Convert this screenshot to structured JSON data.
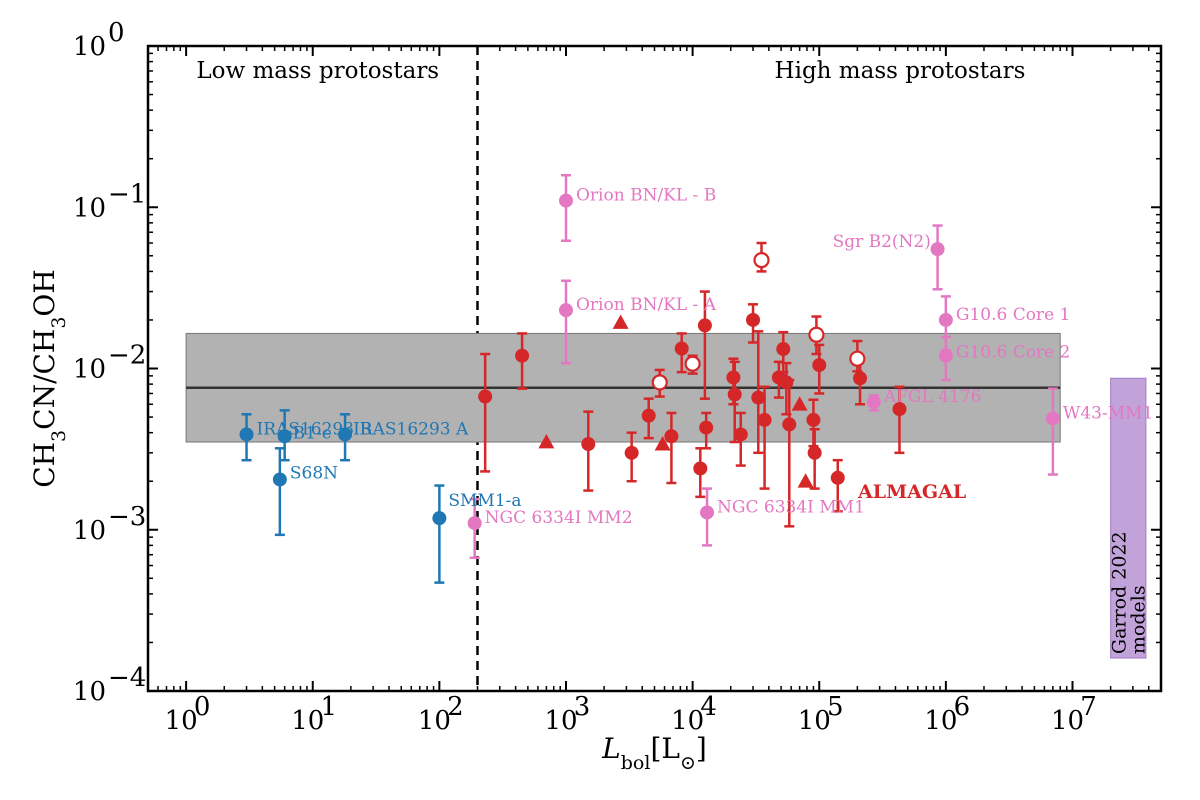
{
  "chart_data": {
    "type": "scatter",
    "xscale": "log",
    "yscale": "log",
    "xlim": [
      0.5,
      50000000
    ],
    "ylim": [
      0.0001,
      1
    ],
    "xlabel": "L_bol [L_⊙]",
    "ylabel": "CH3CN/CH3OH",
    "x_ticks": [
      {
        "label": "10",
        "exp": "0",
        "value": 1
      },
      {
        "label": "10",
        "exp": "1",
        "value": 10
      },
      {
        "label": "10",
        "exp": "2",
        "value": 100
      },
      {
        "label": "10",
        "exp": "3",
        "value": 1000
      },
      {
        "label": "10",
        "exp": "4",
        "value": 10000
      },
      {
        "label": "10",
        "exp": "5",
        "value": 100000
      },
      {
        "label": "10",
        "exp": "6",
        "value": 1000000
      },
      {
        "label": "10",
        "exp": "7",
        "value": 10000000
      }
    ],
    "y_ticks": [
      {
        "label": "10",
        "exp": "0",
        "value": 1
      },
      {
        "label": "10",
        "exp": "−1",
        "value": 0.1
      },
      {
        "label": "10",
        "exp": "−2",
        "value": 0.01
      },
      {
        "label": "10",
        "exp": "−3",
        "value": 0.001
      },
      {
        "label": "10",
        "exp": "−4",
        "value": 0.0001
      }
    ],
    "region_divider_x": 200,
    "regions": [
      "Low mass protostars",
      "High mass protostars"
    ],
    "median_band": {
      "x_range": [
        1,
        8000000
      ],
      "median": 0.0076,
      "low": 0.0035,
      "high": 0.0165
    },
    "models": {
      "label_line1": "Garrod 2022",
      "label_line2": "models",
      "x_range": [
        20000000,
        38000000
      ],
      "y_range": [
        0.00016,
        0.0087
      ]
    },
    "annotation": "ALMAGAL",
    "colors": {
      "low_mass": "#1f77b4",
      "almagal": "#d62728",
      "literature_high": "#e377c2",
      "band": "#b2b2b2",
      "models": "#c1a3d9"
    },
    "low_mass_sources": [
      {
        "name": "IRAS16293 B",
        "x": 3,
        "y": 0.0039,
        "lo": 0.0027,
        "hi": 0.0052
      },
      {
        "name": "B1-c",
        "x": 6,
        "y": 0.0038,
        "lo": 0.0027,
        "hi": 0.0055
      },
      {
        "name": "IRAS16293 A",
        "x": 18,
        "y": 0.0039,
        "lo": 0.0027,
        "hi": 0.0052
      },
      {
        "name": "S68N",
        "x": 5.5,
        "y": 0.00205,
        "lo": 0.00093,
        "hi": 0.0032
      },
      {
        "name": "SMM1-a",
        "x": 100,
        "y": 0.00118,
        "lo": 0.00047,
        "hi": 0.00188
      }
    ],
    "high_mass_literature": [
      {
        "name": "Orion BN/KL - B",
        "x": 1000,
        "y": 0.11,
        "lo": 0.062,
        "hi": 0.158
      },
      {
        "name": "Orion BN/KL - A",
        "x": 1000,
        "y": 0.023,
        "lo": 0.0108,
        "hi": 0.035
      },
      {
        "name": "NGC 6334I MM2",
        "x": 190,
        "y": 0.0011,
        "lo": 0.00067,
        "hi": 0.00155
      },
      {
        "name": "NGC 6334I MM1",
        "x": 13000,
        "y": 0.00128,
        "lo": 0.0008,
        "hi": 0.0018
      },
      {
        "name": "Sgr B2(N2)",
        "x": 860000,
        "y": 0.055,
        "lo": 0.031,
        "hi": 0.077
      },
      {
        "name": "G10.6 Core 1",
        "x": 1000000,
        "y": 0.02,
        "lo": 0.013,
        "hi": 0.028
      },
      {
        "name": "G10.6 Core 2",
        "x": 1000000,
        "y": 0.012,
        "lo": 0.0085,
        "hi": 0.0157
      },
      {
        "name": "AFGL 4176",
        "x": 270000,
        "y": 0.0062,
        "lo": 0.0055,
        "hi": 0.0068
      },
      {
        "name": "W43-MM1",
        "x": 7000000,
        "y": 0.0049,
        "lo": 0.0022,
        "hi": 0.0075
      }
    ],
    "almagal_filled": [
      {
        "x": 230,
        "y": 0.0067,
        "lo": 0.0023,
        "hi": 0.0123
      },
      {
        "x": 450,
        "y": 0.012,
        "lo": 0.0075,
        "hi": 0.0165
      },
      {
        "x": 1500,
        "y": 0.0034,
        "lo": 0.00175,
        "hi": 0.0054
      },
      {
        "x": 3300,
        "y": 0.003,
        "lo": 0.002,
        "hi": 0.004
      },
      {
        "x": 4500,
        "y": 0.0051,
        "lo": 0.0037,
        "hi": 0.0065
      },
      {
        "x": 6800,
        "y": 0.0038,
        "lo": 0.00195,
        "hi": 0.0053
      },
      {
        "x": 8200,
        "y": 0.0133,
        "lo": 0.0095,
        "hi": 0.0165
      },
      {
        "x": 11500,
        "y": 0.0024,
        "lo": 0.0016,
        "hi": 0.0032
      },
      {
        "x": 12500,
        "y": 0.0185,
        "lo": 0.0065,
        "hi": 0.03
      },
      {
        "x": 12800,
        "y": 0.0043,
        "lo": 0.0032,
        "hi": 0.0053
      },
      {
        "x": 21000,
        "y": 0.0088,
        "lo": 0.006,
        "hi": 0.0115
      },
      {
        "x": 21500,
        "y": 0.0069,
        "lo": 0.0035,
        "hi": 0.011
      },
      {
        "x": 24000,
        "y": 0.0039,
        "lo": 0.0025,
        "hi": 0.0053
      },
      {
        "x": 30000,
        "y": 0.02,
        "lo": 0.0145,
        "hi": 0.025
      },
      {
        "x": 33000,
        "y": 0.0066,
        "lo": 0.003,
        "hi": 0.017
      },
      {
        "x": 37000,
        "y": 0.0048,
        "lo": 0.0018,
        "hi": 0.0077
      },
      {
        "x": 48000,
        "y": 0.0088,
        "lo": 0.0066,
        "hi": 0.011
      },
      {
        "x": 52000,
        "y": 0.0132,
        "lo": 0.0095,
        "hi": 0.0168
      },
      {
        "x": 55000,
        "y": 0.0082,
        "lo": 0.0052,
        "hi": 0.0108
      },
      {
        "x": 58000,
        "y": 0.0045,
        "lo": 0.00105,
        "hi": 0.0085
      },
      {
        "x": 90000,
        "y": 0.0048,
        "lo": 0.0033,
        "hi": 0.0064
      },
      {
        "x": 92000,
        "y": 0.003,
        "lo": 0.0018,
        "hi": 0.0042
      },
      {
        "x": 100000,
        "y": 0.0105,
        "lo": 0.007,
        "hi": 0.014
      },
      {
        "x": 140000,
        "y": 0.0021,
        "lo": 0.0013,
        "hi": 0.0027
      },
      {
        "x": 210000,
        "y": 0.0087,
        "lo": 0.006,
        "hi": 0.0115
      },
      {
        "x": 430000,
        "y": 0.0056,
        "lo": 0.003,
        "hi": 0.0077
      }
    ],
    "almagal_open": [
      {
        "x": 5500,
        "y": 0.0082,
        "lo": 0.0067,
        "hi": 0.0098
      },
      {
        "x": 10000,
        "y": 0.0107,
        "lo": 0.0093,
        "hi": 0.012
      },
      {
        "x": 35000,
        "y": 0.047,
        "lo": 0.04,
        "hi": 0.06
      },
      {
        "x": 95000,
        "y": 0.0162,
        "lo": 0.0123,
        "hi": 0.021
      },
      {
        "x": 200000,
        "y": 0.0115,
        "lo": 0.0096,
        "hi": 0.0148
      }
    ],
    "almagal_triangles": [
      {
        "x": 2700,
        "y": 0.0193
      },
      {
        "x": 700,
        "y": 0.0035
      },
      {
        "x": 5800,
        "y": 0.0034
      },
      {
        "x": 70000,
        "y": 0.006
      },
      {
        "x": 78000,
        "y": 0.002
      }
    ]
  }
}
